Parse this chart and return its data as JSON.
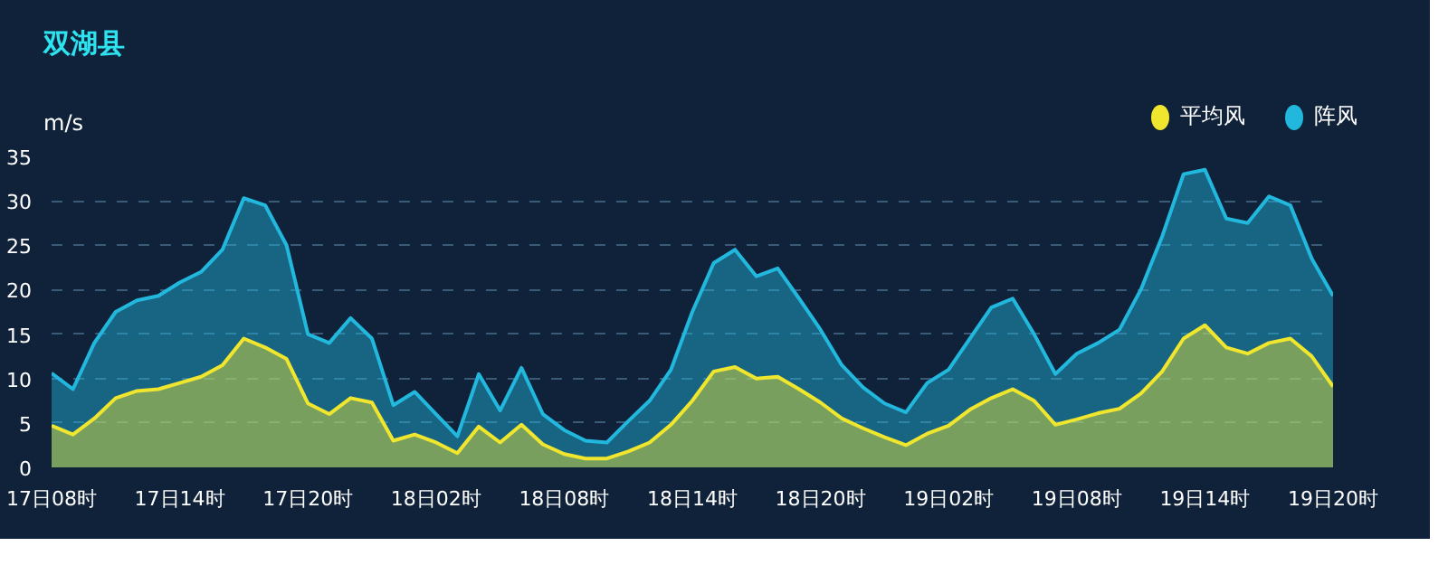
{
  "chart_data": {
    "type": "area",
    "title": "双湖县",
    "ylabel": "m/s",
    "categories": [
      "17日08时",
      null,
      null,
      null,
      null,
      null,
      "17日14时",
      null,
      null,
      null,
      null,
      null,
      "17日20时",
      null,
      null,
      null,
      null,
      null,
      "18日02时",
      null,
      null,
      null,
      null,
      null,
      "18日08时",
      null,
      null,
      null,
      null,
      null,
      "18日14时",
      null,
      null,
      null,
      null,
      null,
      "18日20时",
      null,
      null,
      null,
      null,
      null,
      "19日02时",
      null,
      null,
      null,
      null,
      null,
      "19日08时",
      null,
      null,
      null,
      null,
      null,
      "19日14时",
      null,
      null,
      null,
      null,
      null,
      "19日20时"
    ],
    "series": [
      {
        "name": "阵风",
        "color": "#22b8de",
        "values": [
          10.6,
          8.8,
          14,
          17.5,
          18.8,
          19.3,
          20.8,
          22,
          24.5,
          30.3,
          29.5,
          25,
          15,
          14,
          16.8,
          14.5,
          7,
          8.5,
          6,
          3.5,
          10.5,
          6.4,
          11.2,
          6,
          4.2,
          3,
          2.8,
          5.2,
          7.5,
          11,
          17.5,
          23,
          24.5,
          21.5,
          22.4,
          19,
          15.5,
          11.5,
          9,
          7.2,
          6.2,
          9.5,
          11,
          14.5,
          18,
          19,
          15,
          10.5,
          12.8,
          14,
          15.5,
          20,
          26,
          33,
          33.5,
          28,
          27.5,
          30.5,
          29.5,
          23.5,
          19.3
        ]
      },
      {
        "name": "平均风",
        "color": "#f0e62e",
        "values": [
          4.7,
          3.7,
          5.5,
          7.8,
          8.6,
          8.8,
          9.5,
          10.2,
          11.5,
          14.5,
          13.5,
          12.2,
          7.2,
          6,
          7.8,
          7.3,
          3,
          3.7,
          2.8,
          1.6,
          4.6,
          2.8,
          4.8,
          2.6,
          1.5,
          1,
          1,
          1.8,
          2.8,
          4.8,
          7.5,
          10.8,
          11.3,
          10,
          10.2,
          8.8,
          7.3,
          5.5,
          4.4,
          3.4,
          2.5,
          3.8,
          4.7,
          6.5,
          7.8,
          8.8,
          7.5,
          4.8,
          5.4,
          6.1,
          6.6,
          8.3,
          10.8,
          14.5,
          16,
          13.5,
          12.8,
          14,
          14.5,
          12.5,
          9.1
        ]
      }
    ],
    "ylim": [
      0,
      35
    ],
    "yticks": [
      0,
      5,
      10,
      15,
      20,
      25,
      30,
      35
    ],
    "grid": "y",
    "legend": "top right"
  }
}
